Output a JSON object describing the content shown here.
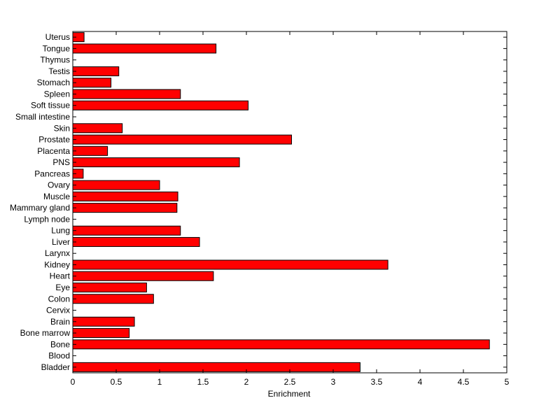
{
  "chart_data": {
    "type": "bar",
    "orientation": "horizontal",
    "categories": [
      "Bladder",
      "Blood",
      "Bone",
      "Bone marrow",
      "Brain",
      "Cervix",
      "Colon",
      "Eye",
      "Heart",
      "Kidney",
      "Larynx",
      "Liver",
      "Lung",
      "Lymph node",
      "Mammary gland",
      "Muscle",
      "Ovary",
      "Pancreas",
      "PNS",
      "Placenta",
      "Prostate",
      "Skin",
      "Small intestine",
      "Soft tissue",
      "Spleen",
      "Stomach",
      "Testis",
      "Thymus",
      "Tongue",
      "Uterus"
    ],
    "values": [
      3.31,
      0,
      4.8,
      0.65,
      0.71,
      0,
      0.93,
      0.85,
      1.62,
      3.63,
      0,
      1.46,
      1.24,
      0,
      1.2,
      1.21,
      1.0,
      0.12,
      1.92,
      0.4,
      2.52,
      0.57,
      0,
      2.02,
      1.24,
      0.44,
      0.53,
      0,
      1.65,
      0.13
    ],
    "xlabel": "Enrichment",
    "ylabel": "",
    "title": "",
    "xlim": [
      0,
      5
    ],
    "xticks": [
      "0",
      "0.5",
      "1",
      "1.5",
      "2",
      "2.5",
      "3",
      "3.5",
      "4",
      "4.5",
      "5"
    ],
    "bar_color": "#ff0000",
    "bar_edge_color": "#000000",
    "grid": false
  }
}
